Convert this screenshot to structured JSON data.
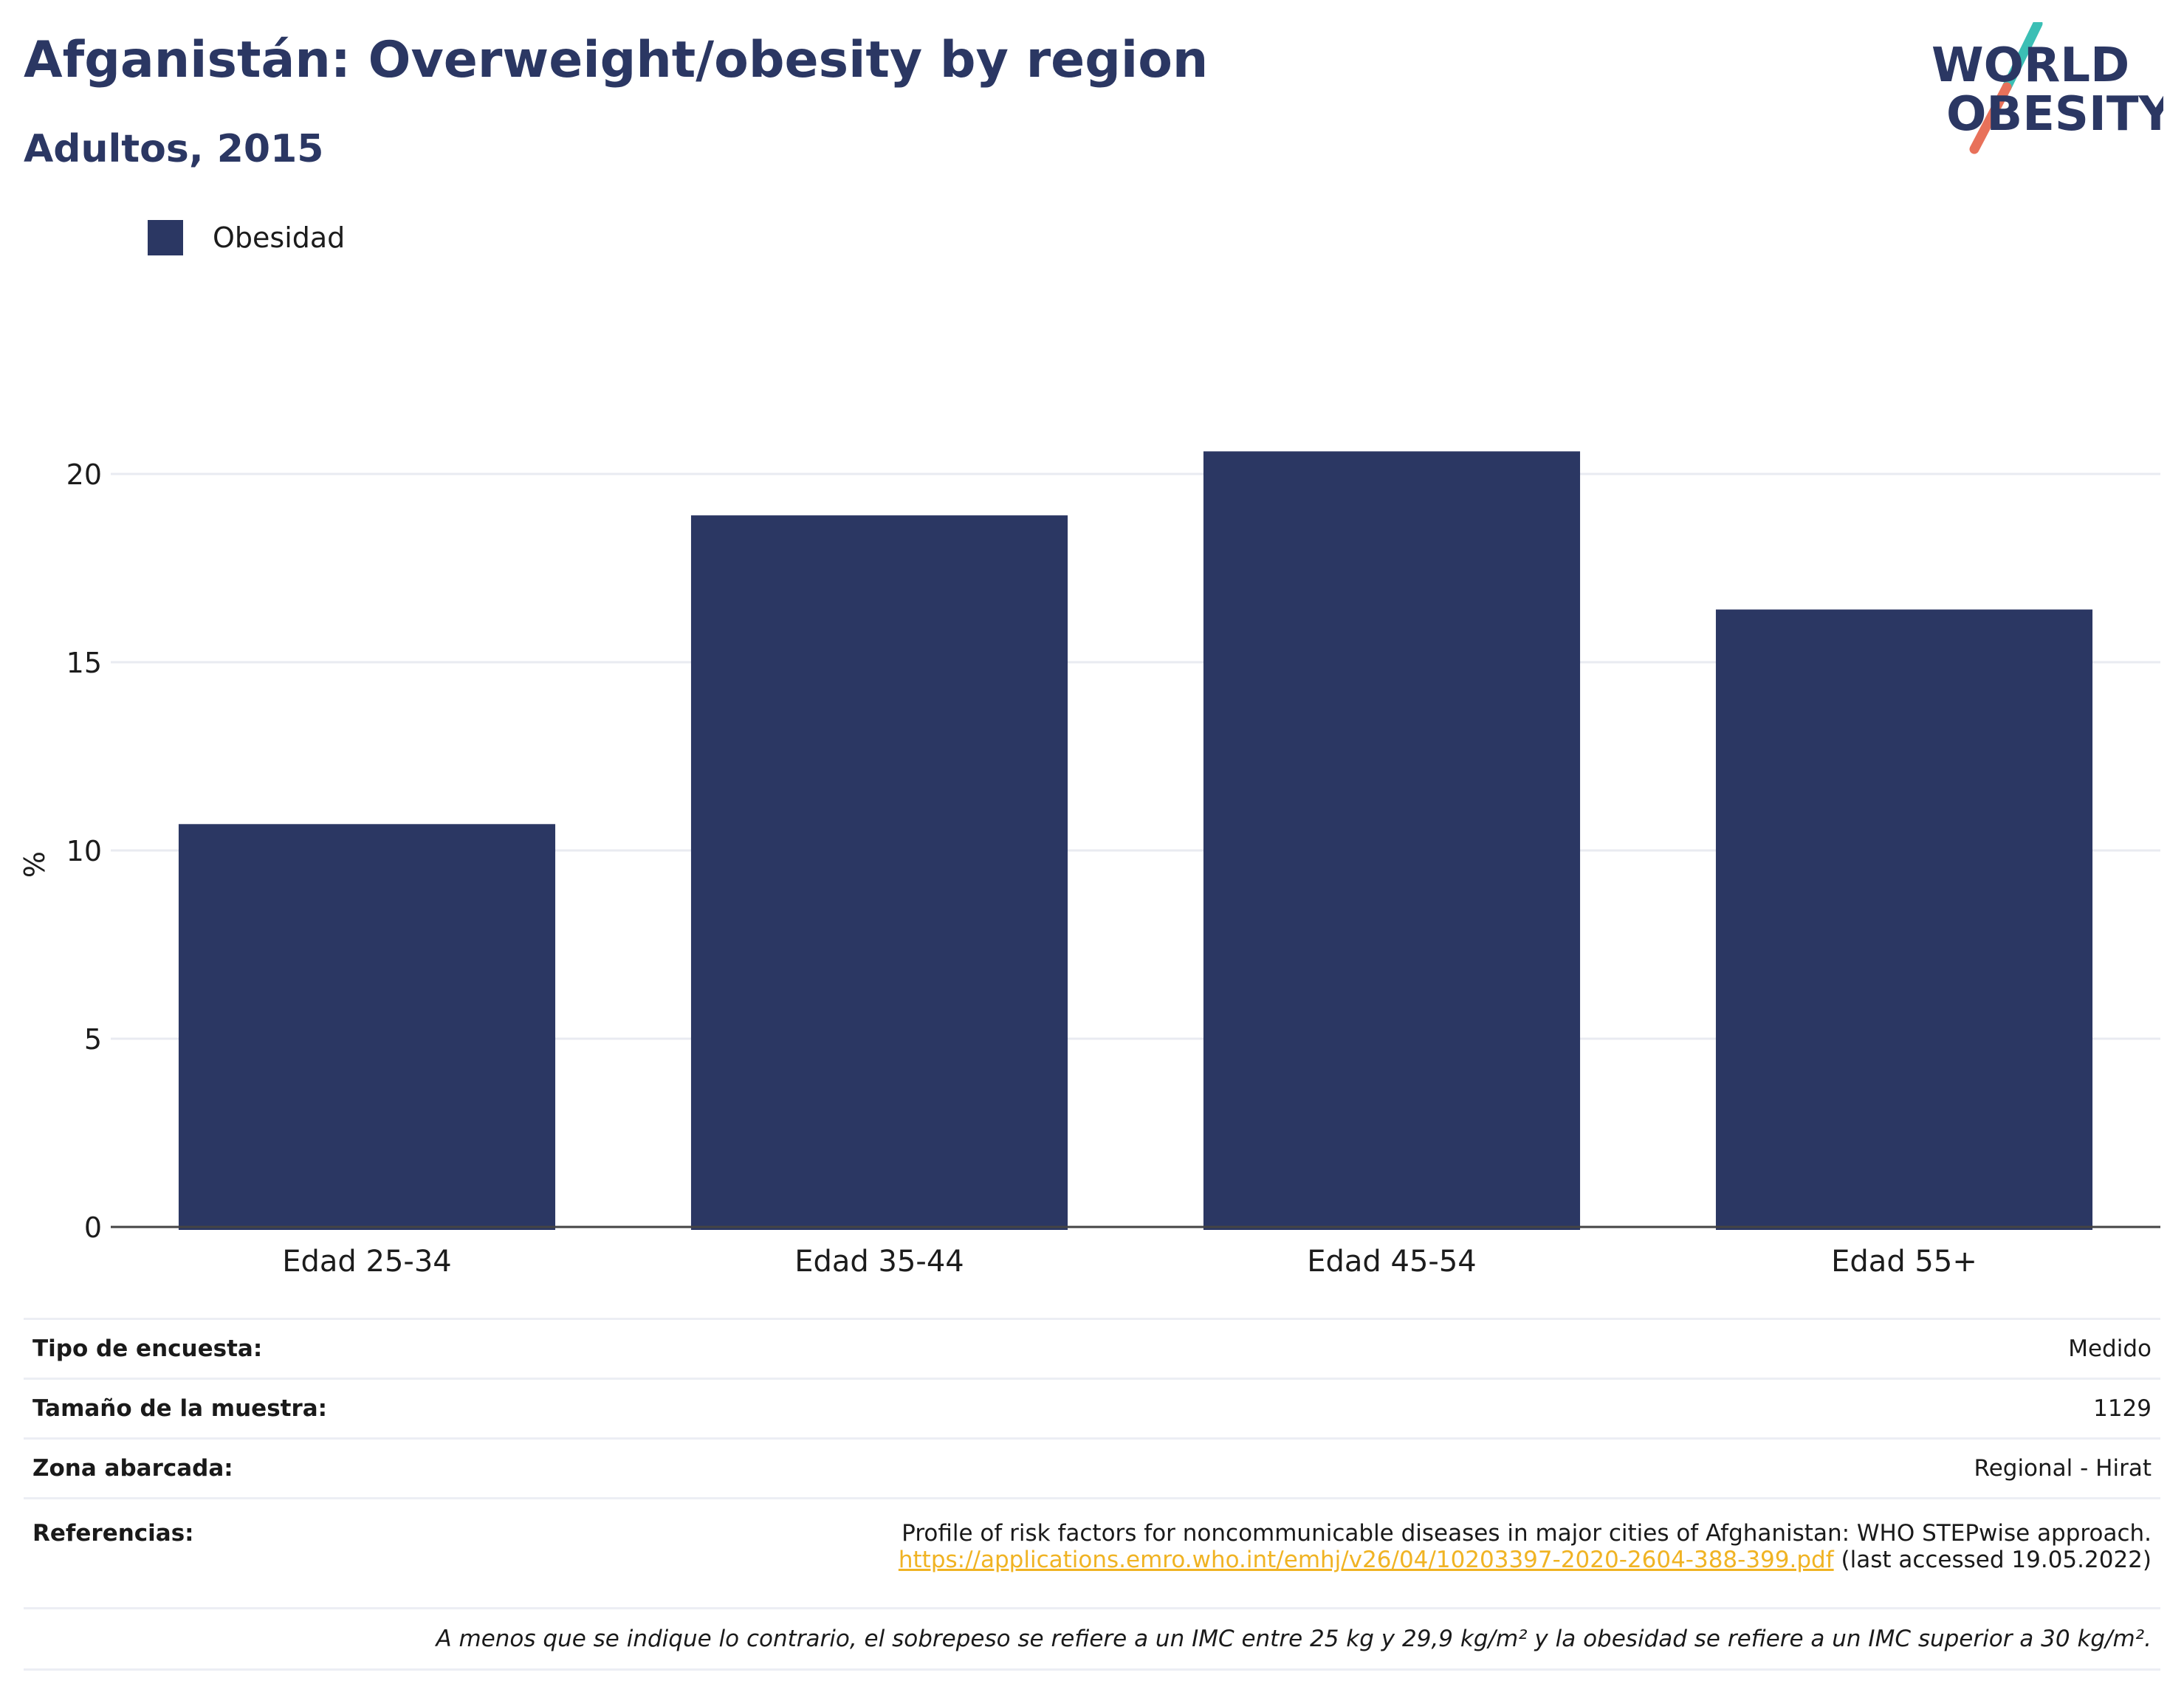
{
  "header": {
    "title": "Afganistán: Overweight/obesity by region",
    "subtitle": "Adultos, 2015"
  },
  "logo": {
    "line1": "WORLD",
    "line2": "OBESITY",
    "colors": {
      "text": "#2b3763",
      "slash_top": "#3bbfb5",
      "slash_bottom": "#e8715a"
    }
  },
  "chart_data": {
    "type": "bar",
    "categories": [
      "Edad 25-34",
      "Edad 35-44",
      "Edad 45-54",
      "Edad 55+"
    ],
    "series": [
      {
        "name": "Obesidad",
        "values": [
          10.7,
          18.9,
          20.6,
          16.4
        ],
        "color": "#2b3763"
      }
    ],
    "ylabel": "%",
    "ylim": [
      0,
      22
    ],
    "yticks": [
      0,
      5,
      10,
      15,
      20
    ],
    "grid": true,
    "legend": "top-left"
  },
  "metadata": {
    "survey_type": {
      "label": "Tipo de encuesta:",
      "value": "Medido"
    },
    "sample_size": {
      "label": "Tamaño de la muestra:",
      "value": "1129"
    },
    "area": {
      "label": "Zona abarcada:",
      "value": "Regional - Hirat"
    },
    "references": {
      "label": "Referencias:",
      "text": "Profile of risk factors for noncommunicable diseases in major cities of Afghanistan: WHO STEPwise approach.",
      "link": "https://applications.emro.who.int/emhj/v26/04/10203397-2020-2604-388-399.pdf",
      "accessed": "(last accessed 19.05.2022)"
    },
    "note": "A menos que se indique lo contrario, el sobrepeso se refiere a un IMC entre 25 kg y 29,9 kg/m² y la obesidad se refiere a un IMC superior a 30 kg/m²."
  }
}
